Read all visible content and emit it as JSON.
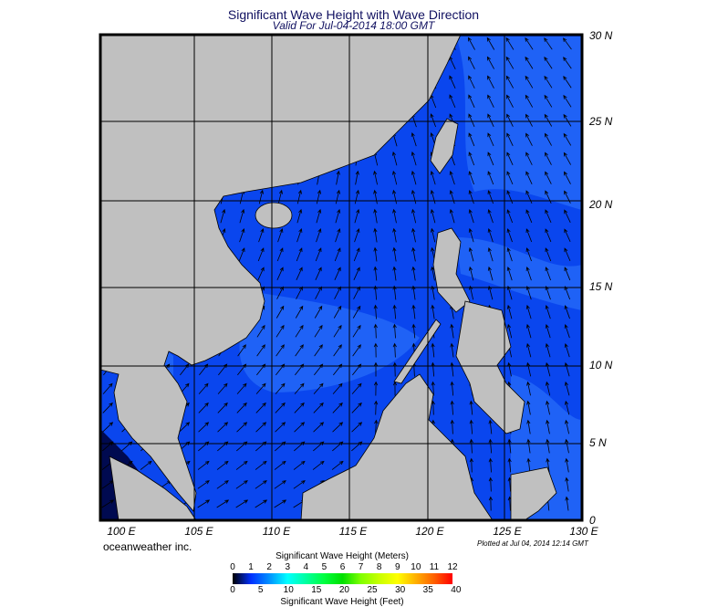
{
  "title": "Significant Wave Height with Wave Direction",
  "subtitle": "Valid For Jul-04-2014 18:00 GMT",
  "map": {
    "region": "South China Sea / Philippines",
    "lon_range": [
      100,
      130
    ],
    "lat_range": [
      0,
      30
    ],
    "lon_labels": [
      "100 E",
      "105 E",
      "110 E",
      "115 E",
      "120 E",
      "125 E",
      "130 E"
    ],
    "lat_labels": [
      "30 N",
      "25 N",
      "20 N",
      "15 N",
      "10 N",
      "5 N",
      "0"
    ],
    "grid": true,
    "colors": {
      "ocean": "#0a46ee",
      "ocean_light": "#1f62f6",
      "land": "#c0c0c0",
      "deep": "#000a50",
      "arrow": "#000000"
    }
  },
  "credit": "oceanweather inc.",
  "plotted": "Plotted at Jul 04, 2014 12:14 GMT",
  "colorbar": {
    "title_meters": "Significant Wave Height (Meters)",
    "title_feet": "Significant Wave Height (Feet)",
    "meters_ticks": [
      "0",
      "1",
      "2",
      "3",
      "4",
      "5",
      "6",
      "7",
      "8",
      "9",
      "10",
      "11",
      "12"
    ],
    "feet_ticks": [
      "0",
      "5",
      "10",
      "15",
      "20",
      "25",
      "30",
      "35",
      "40"
    ],
    "colors": [
      "#000000",
      "#0030ff",
      "#0090ff",
      "#00ffff",
      "#00ffa0",
      "#00ff40",
      "#00e000",
      "#80ff00",
      "#c8ff00",
      "#ffff00",
      "#ffb000",
      "#ff6000",
      "#ff0000"
    ]
  }
}
